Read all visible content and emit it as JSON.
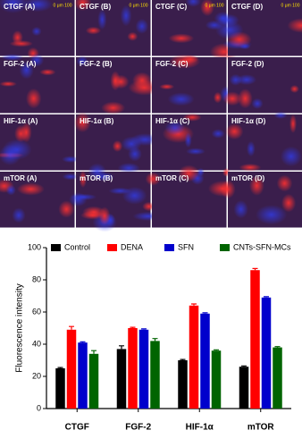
{
  "panels": [
    [
      "CTGF (A)",
      "CTGF (B)",
      "CTGF (C)",
      "CTGF (D)"
    ],
    [
      "FGF-2 (A)",
      "FGF-2 (B)",
      "FGF-2 (C)",
      "FGF-2 (D)"
    ],
    [
      "HIF-1α (A)",
      "HIF-1α (B)",
      "HIF-1α (C)",
      "HIF-1α (D)"
    ],
    [
      "mTOR (A)",
      "mTOR (B)",
      "mTOR (C)",
      "mTOR (D)"
    ]
  ],
  "scale_bar": "0   μm  100",
  "chart_data": {
    "type": "bar",
    "y_label": "Fluorescence intensity",
    "categories": [
      "CTGF",
      "FGF-2",
      "HIF-1α",
      "mTOR"
    ],
    "series": [
      {
        "name": "Control",
        "color": "#000000",
        "values": [
          25,
          37,
          30,
          26
        ],
        "errors": [
          0.5,
          2,
          0.5,
          0.5
        ]
      },
      {
        "name": "DENA",
        "color": "#ff0000",
        "values": [
          49,
          50,
          64,
          86
        ],
        "errors": [
          2,
          0.5,
          1,
          1
        ]
      },
      {
        "name": "SFN",
        "color": "#0000cc",
        "values": [
          41,
          49,
          59,
          69
        ],
        "errors": [
          0.5,
          0.5,
          0.5,
          0.5
        ]
      },
      {
        "name": "CNTs-SFN-MCs",
        "color": "#006400",
        "values": [
          34,
          42,
          36,
          38
        ],
        "errors": [
          2,
          1.5,
          0.5,
          0.5
        ]
      }
    ],
    "ylim": [
      0,
      100
    ],
    "yticks": [
      0,
      20,
      40,
      60,
      80,
      100
    ]
  }
}
